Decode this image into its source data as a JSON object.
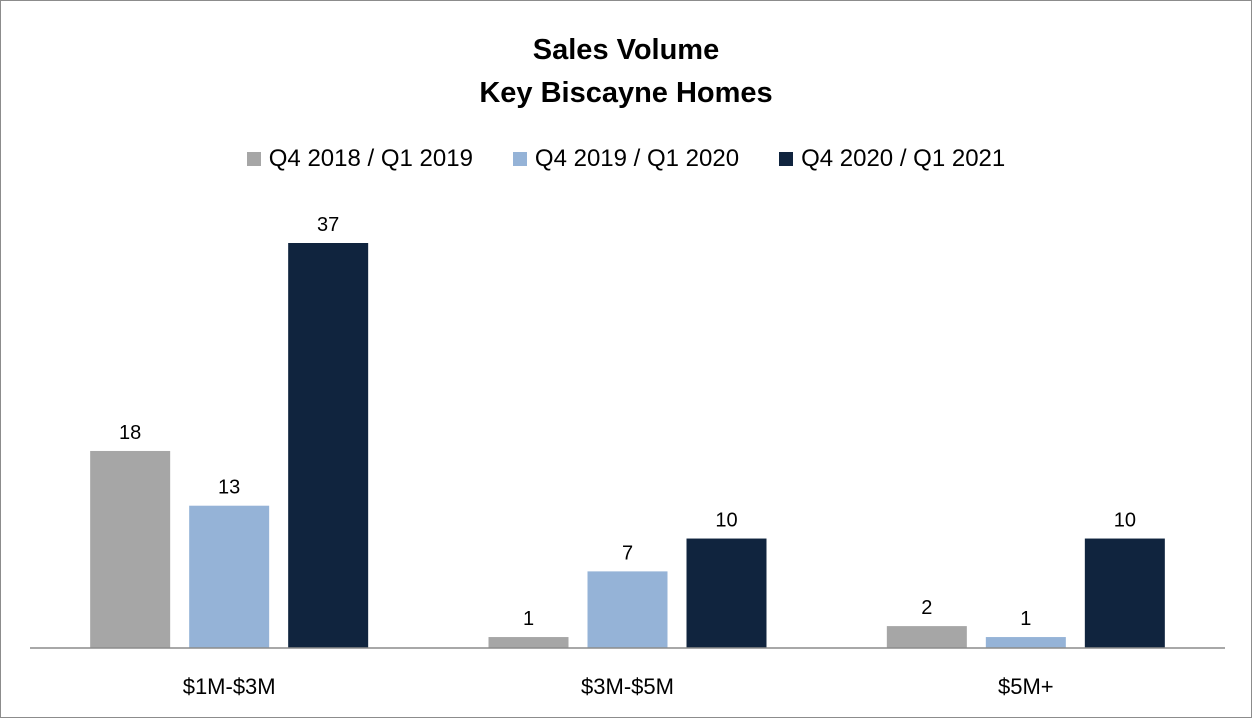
{
  "chart_data": {
    "type": "bar",
    "title": "Sales Volume",
    "subtitle": "Key Biscayne Homes",
    "categories": [
      "$1M-$3M",
      "$3M-$5M",
      "$5M+"
    ],
    "series": [
      {
        "name": "Q4 2018 / Q1 2019",
        "values": [
          18,
          1,
          2
        ],
        "color": "#a6a6a6"
      },
      {
        "name": "Q4 2019 / Q1 2020",
        "values": [
          13,
          7,
          1
        ],
        "color": "#95b3d7"
      },
      {
        "name": "Q4 2020 / Q1 2021",
        "values": [
          37,
          10,
          10
        ],
        "color": "#10243e"
      }
    ],
    "ylim": [
      0,
      37
    ],
    "grid": false,
    "legend_position": "top"
  }
}
